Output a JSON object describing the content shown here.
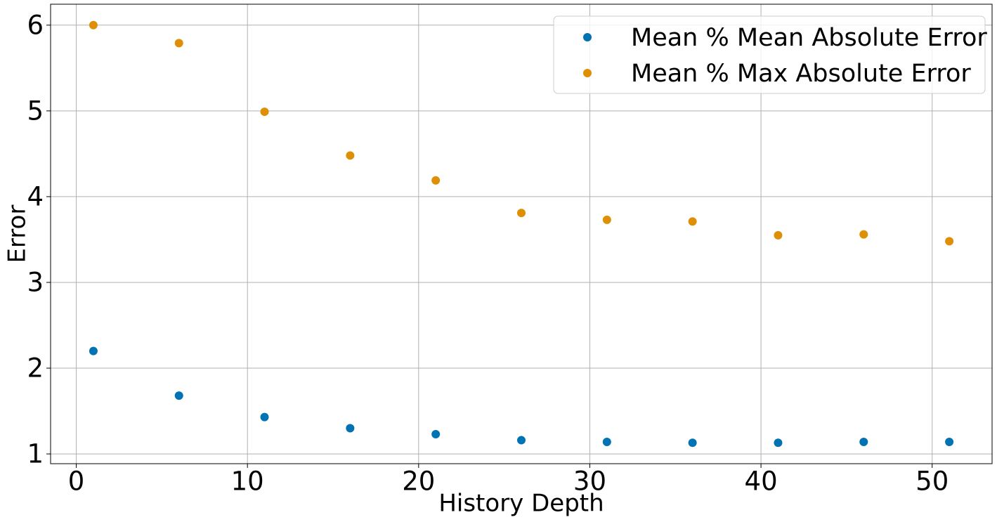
{
  "chart_data": {
    "type": "scatter",
    "x_label": "History Depth",
    "y_label": "Error",
    "x": [
      1,
      6,
      11,
      16,
      21,
      26,
      31,
      36,
      41,
      46,
      51
    ],
    "series": [
      {
        "name": "Mean % Mean Absolute Error",
        "color": "#0173b2",
        "values": [
          2.2,
          1.68,
          1.43,
          1.3,
          1.23,
          1.16,
          1.14,
          1.13,
          1.13,
          1.14,
          1.14
        ]
      },
      {
        "name": "Mean % Max Absolute Error",
        "color": "#de8f05",
        "values": [
          6.0,
          5.79,
          4.99,
          4.48,
          4.19,
          3.81,
          3.73,
          3.71,
          3.55,
          3.56,
          3.48
        ]
      }
    ],
    "xlim": [
      -1.5,
      53.5
    ],
    "xticks": [
      0,
      10,
      20,
      30,
      40,
      50
    ],
    "ylim": [
      0.886,
      6.244
    ],
    "yticks": [
      1,
      2,
      3,
      4,
      5,
      6
    ],
    "grid": true,
    "legend": "upper-right"
  }
}
